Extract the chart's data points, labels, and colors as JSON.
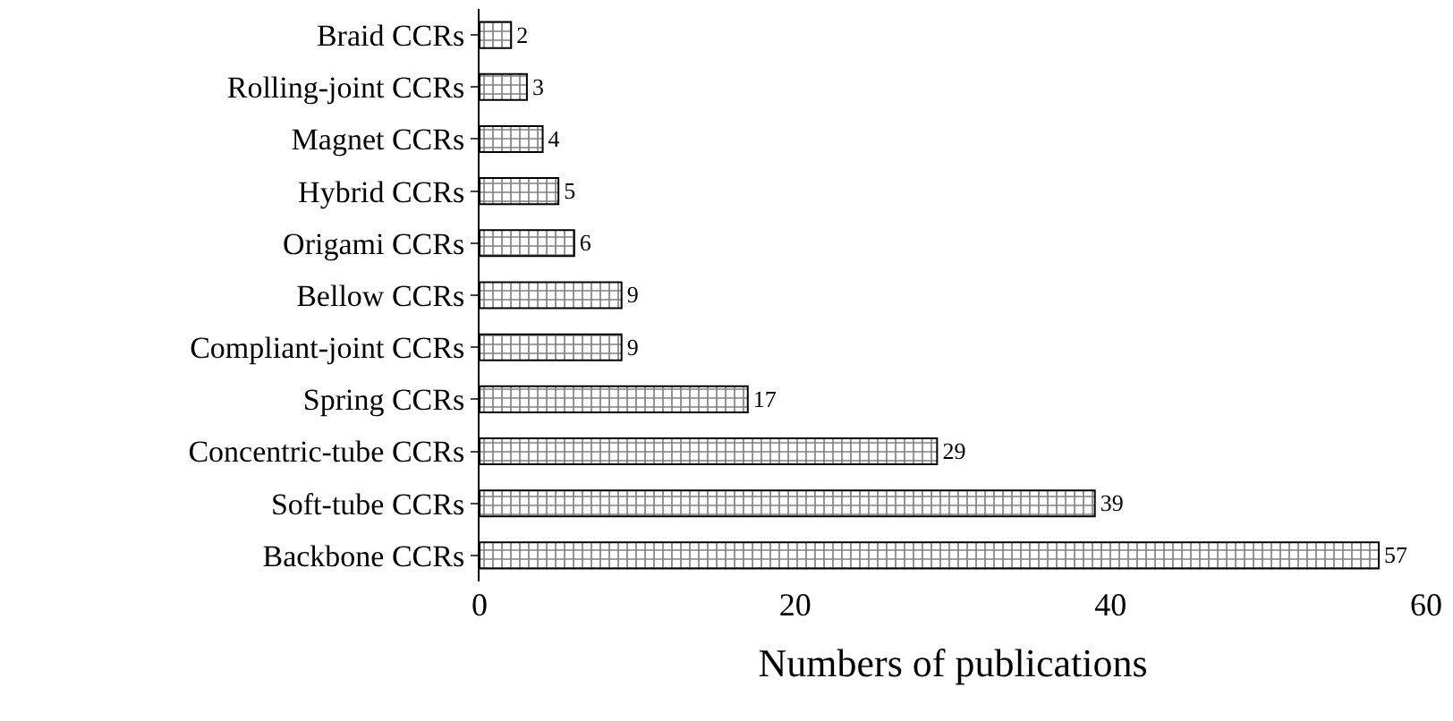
{
  "chart_data": {
    "type": "bar",
    "orientation": "horizontal",
    "xlabel": "Numbers of publications",
    "categories": [
      "Braid CCRs",
      "Rolling-joint CCRs",
      "Magnet CCRs",
      "Hybrid CCRs",
      "Origami CCRs",
      "Bellow CCRs",
      "Compliant-joint CCRs",
      "Spring CCRs",
      "Concentric-tube CCRs",
      "Soft-tube CCRs",
      "Backbone CCRs"
    ],
    "values": [
      2,
      3,
      4,
      5,
      6,
      9,
      9,
      17,
      29,
      39,
      57
    ],
    "color": "#000000",
    "xlim": [
      0,
      60
    ],
    "xticks": [
      0,
      20,
      40,
      60
    ],
    "data_labels": true
  }
}
